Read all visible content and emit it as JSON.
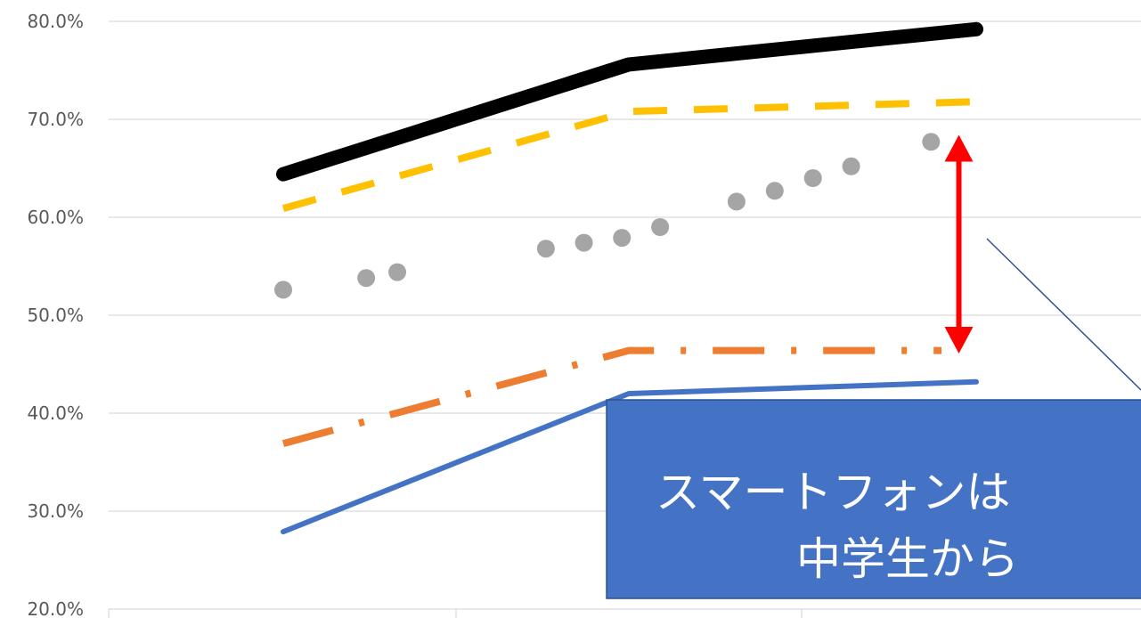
{
  "chart_data": {
    "type": "line",
    "title": "",
    "xlabel": "",
    "ylabel": "",
    "y_ticks": [
      "80.0%",
      "70.0%",
      "60.0%",
      "50.0%",
      "40.0%",
      "30.0%",
      "20.0%"
    ],
    "ylim": [
      20,
      80
    ],
    "x_categories_visible": 3,
    "grid": "horizontal",
    "series": [
      {
        "style": "solid-thick",
        "color": "#000000",
        "points": [
          [
            0,
            64.4
          ],
          [
            1,
            75.6
          ],
          [
            2,
            79.2
          ]
        ]
      },
      {
        "style": "dashed",
        "color": "#FFC000",
        "points": [
          [
            0,
            60.9
          ],
          [
            1,
            70.8
          ],
          [
            2,
            71.8
          ]
        ]
      },
      {
        "style": "dotted",
        "color": "#A5A5A5",
        "points": [
          [
            0.0,
            52.6
          ],
          [
            0.24,
            53.8
          ],
          [
            0.33,
            54.4
          ],
          [
            0.76,
            56.8
          ],
          [
            0.87,
            57.4
          ],
          [
            0.98,
            57.9
          ],
          [
            1.09,
            59.0
          ],
          [
            1.31,
            61.6
          ],
          [
            1.42,
            62.7
          ],
          [
            1.53,
            64.0
          ],
          [
            1.64,
            65.2
          ],
          [
            1.87,
            67.7
          ]
        ]
      },
      {
        "style": "dash-dot",
        "color": "#ED7D31",
        "points": [
          [
            0,
            36.9
          ],
          [
            1,
            46.4
          ],
          [
            1.9,
            46.4
          ]
        ]
      },
      {
        "style": "solid",
        "color": "#4472C4",
        "points": [
          [
            0,
            27.9
          ],
          [
            1,
            42.0
          ],
          [
            2,
            43.2
          ]
        ]
      }
    ],
    "annotations": {
      "gap_arrow": {
        "color": "#FF0000",
        "from": 47.0,
        "to": 67.5,
        "x": 1.95
      },
      "callout": {
        "line1": "スマートフォンは",
        "line2": "中学生から",
        "fill": "#4472C4",
        "border": "#2F528F",
        "text_color": "#FFFFFF"
      }
    }
  }
}
